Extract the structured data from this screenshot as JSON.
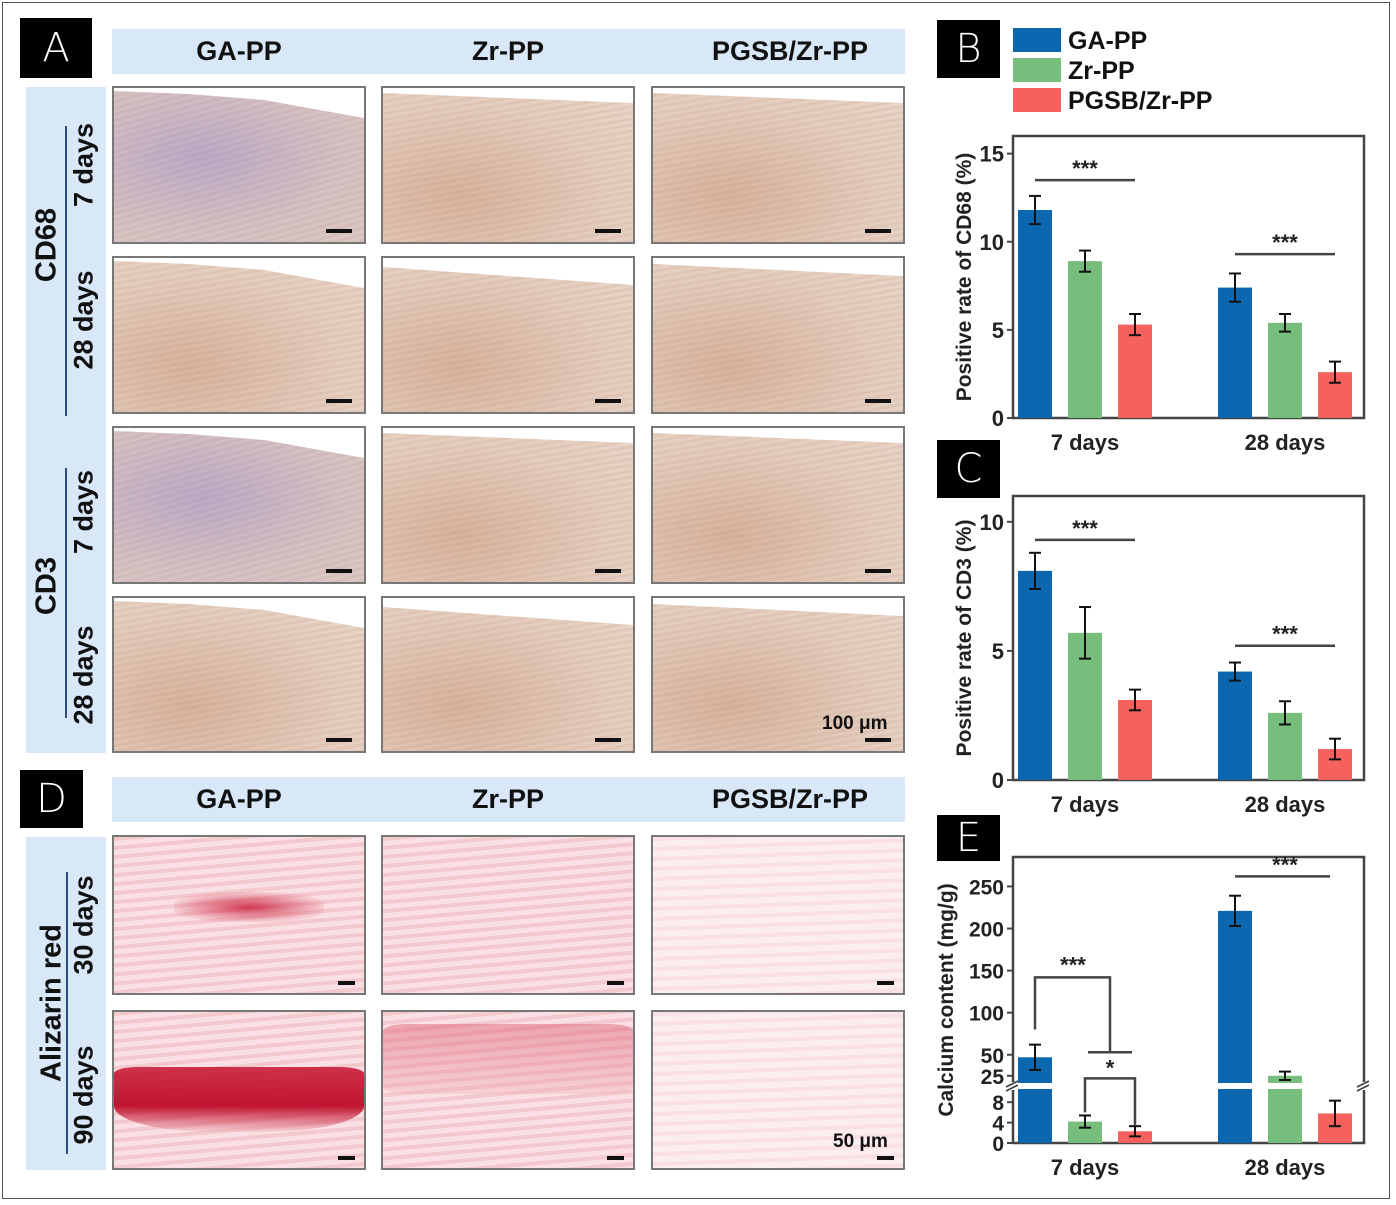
{
  "panels": {
    "A": {
      "label": "A",
      "columns": [
        "GA-PP",
        "Zr-PP",
        "PGSB/Zr-PP"
      ],
      "groups": [
        {
          "marker": "CD68",
          "rows": [
            "7 days",
            "28 days"
          ]
        },
        {
          "marker": "CD3",
          "rows": [
            "7 days",
            "28 days"
          ]
        }
      ],
      "scale_bar": "100 μm"
    },
    "D": {
      "label": "D",
      "columns": [
        "GA-PP",
        "Zr-PP",
        "PGSB/Zr-PP"
      ],
      "groups": [
        {
          "marker": "Alizarin red",
          "rows": [
            "30 days",
            "90 days"
          ]
        }
      ],
      "scale_bar": "50 μm"
    },
    "B": {
      "label": "B"
    },
    "C": {
      "label": "C"
    },
    "E": {
      "label": "E"
    }
  },
  "colors": {
    "GA-PP": "#0b68b0",
    "Zr-PP": "#77be7d",
    "PGSB/Zr-PP": "#f5625d",
    "header_bg": "#d9e8f8"
  },
  "legend": [
    "GA-PP",
    "Zr-PP",
    "PGSB/Zr-PP"
  ],
  "chart_data": [
    {
      "id": "B",
      "type": "bar",
      "ylabel": "Positive rate of CD68 (%)",
      "categories": [
        "7 days",
        "28 days"
      ],
      "ylim": [
        0,
        16
      ],
      "yticks": [
        0,
        5,
        10,
        15
      ],
      "series": [
        {
          "name": "GA-PP",
          "values": [
            11.8,
            7.4
          ],
          "errors": [
            0.8,
            0.8
          ]
        },
        {
          "name": "Zr-PP",
          "values": [
            8.9,
            5.4
          ],
          "errors": [
            0.6,
            0.5
          ]
        },
        {
          "name": "PGSB/Zr-PP",
          "values": [
            5.3,
            2.6
          ],
          "errors": [
            0.6,
            0.6
          ]
        }
      ],
      "significance": [
        {
          "category": "7 days",
          "label": "***",
          "level": 13.5
        },
        {
          "category": "28 days",
          "label": "***",
          "level": 9.3
        }
      ],
      "legend": "top"
    },
    {
      "id": "C",
      "type": "bar",
      "ylabel": "Positive rate of CD3 (%)",
      "categories": [
        "7 days",
        "28 days"
      ],
      "ylim": [
        0,
        11
      ],
      "yticks": [
        0,
        5,
        10
      ],
      "series": [
        {
          "name": "GA-PP",
          "values": [
            8.1,
            4.2
          ],
          "errors": [
            0.7,
            0.35
          ]
        },
        {
          "name": "Zr-PP",
          "values": [
            5.7,
            2.6
          ],
          "errors": [
            1.0,
            0.45
          ]
        },
        {
          "name": "PGSB/Zr-PP",
          "values": [
            3.1,
            1.2
          ],
          "errors": [
            0.4,
            0.4
          ]
        }
      ],
      "significance": [
        {
          "category": "7 days",
          "label": "***",
          "level": 9.3
        },
        {
          "category": "28 days",
          "label": "***",
          "level": 5.2
        }
      ]
    },
    {
      "id": "E",
      "type": "bar",
      "ylabel": "Calcium content (mg/g)",
      "categories": [
        "7 days",
        "28 days"
      ],
      "axis_break": true,
      "lower_ylim": [
        0,
        10
      ],
      "lower_yticks": [
        0,
        4,
        8
      ],
      "upper_ylim": [
        20,
        285
      ],
      "upper_yticks": [
        25,
        50,
        100,
        150,
        200,
        250
      ],
      "series": [
        {
          "name": "GA-PP",
          "values": [
            47,
            221
          ],
          "errors": [
            15,
            18
          ]
        },
        {
          "name": "Zr-PP",
          "values": [
            4.2,
            25
          ],
          "errors": [
            1.2,
            5
          ]
        },
        {
          "name": "PGSB/Zr-PP",
          "values": [
            2.3,
            5.8
          ],
          "errors": [
            1.0,
            2.5
          ]
        }
      ],
      "significance": [
        {
          "category": "7 days",
          "label": "***",
          "compare": "GA-PP vs (Zr-PP, PGSB/Zr-PP)"
        },
        {
          "category": "7 days",
          "label": "*",
          "compare": "Zr-PP vs PGSB/Zr-PP"
        },
        {
          "category": "28 days",
          "label": "***"
        }
      ]
    }
  ]
}
